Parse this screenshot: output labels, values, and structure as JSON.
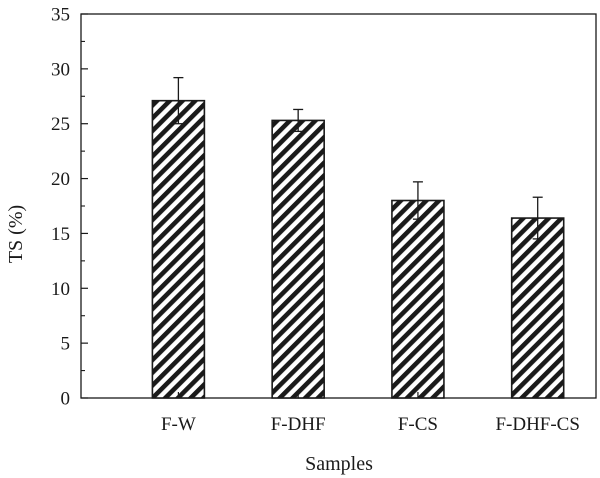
{
  "chart_data": {
    "type": "bar",
    "categories": [
      "F-W",
      "F-DHF",
      "F-CS",
      "F-DHF-CS"
    ],
    "values": [
      27.1,
      25.3,
      18.0,
      16.4
    ],
    "errors": [
      2.1,
      1.0,
      1.7,
      1.9
    ],
    "title": "",
    "xlabel": "Samples",
    "ylabel": "TS (%)",
    "ylim": [
      0,
      35
    ],
    "yticks": [
      0,
      5,
      10,
      15,
      20,
      25,
      30,
      35
    ],
    "grid": false,
    "legend": "none",
    "bar_fill": "diagonal-hatch",
    "colors": {
      "stroke": "#1a1a1a",
      "background": "#ffffff"
    }
  }
}
